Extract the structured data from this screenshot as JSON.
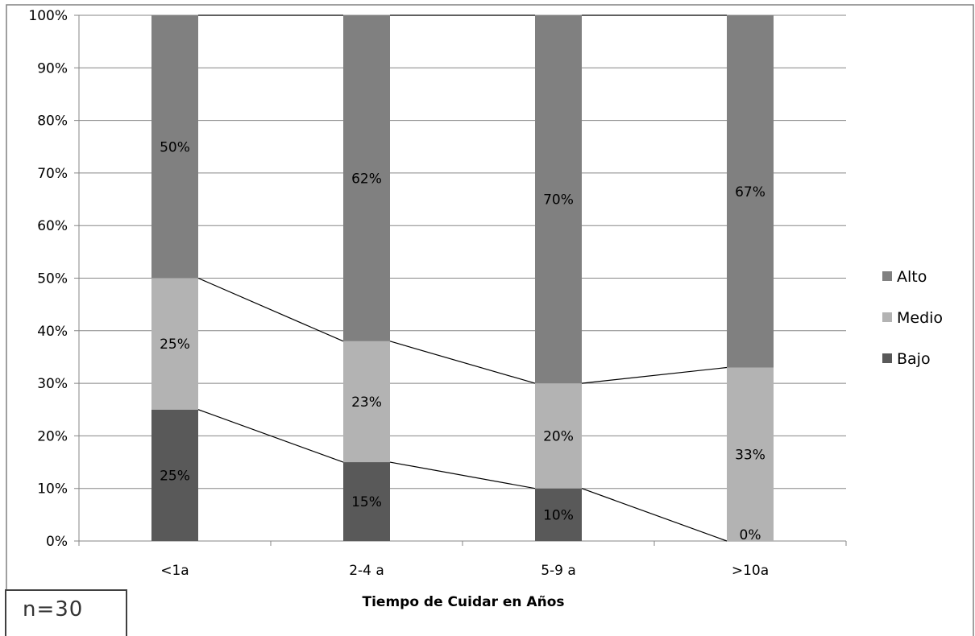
{
  "chart_data": {
    "type": "bar",
    "stacked": true,
    "percent": true,
    "categories": [
      "<1a",
      "2-4 a",
      "5-9 a",
      ">10a"
    ],
    "series": [
      {
        "name": "Bajo",
        "values": [
          25,
          15,
          10,
          0
        ],
        "labels": [
          "25%",
          "15%",
          "10%",
          "0%"
        ],
        "color": "#595959"
      },
      {
        "name": "Medio",
        "values": [
          25,
          23,
          20,
          33
        ],
        "labels": [
          "25%",
          "23%",
          "20%",
          "33%"
        ],
        "color": "#b3b3b3"
      },
      {
        "name": "Alto",
        "values": [
          50,
          62,
          70,
          67
        ],
        "labels": [
          "50%",
          "62%",
          "70%",
          "67%"
        ],
        "color": "#808080"
      }
    ],
    "y_ticks": [
      "0%",
      "10%",
      "20%",
      "30%",
      "40%",
      "50%",
      "60%",
      "70%",
      "80%",
      "90%",
      "100%"
    ],
    "ylim": [
      0,
      100
    ],
    "xlabel": "Tiempo de Cuidar en Años",
    "ylabel": "",
    "title": "",
    "grid": true,
    "series_lines": true,
    "legend_position": "right",
    "legend_order": [
      "Alto",
      "Medio",
      "Bajo"
    ]
  },
  "note": {
    "text": "n=30"
  }
}
